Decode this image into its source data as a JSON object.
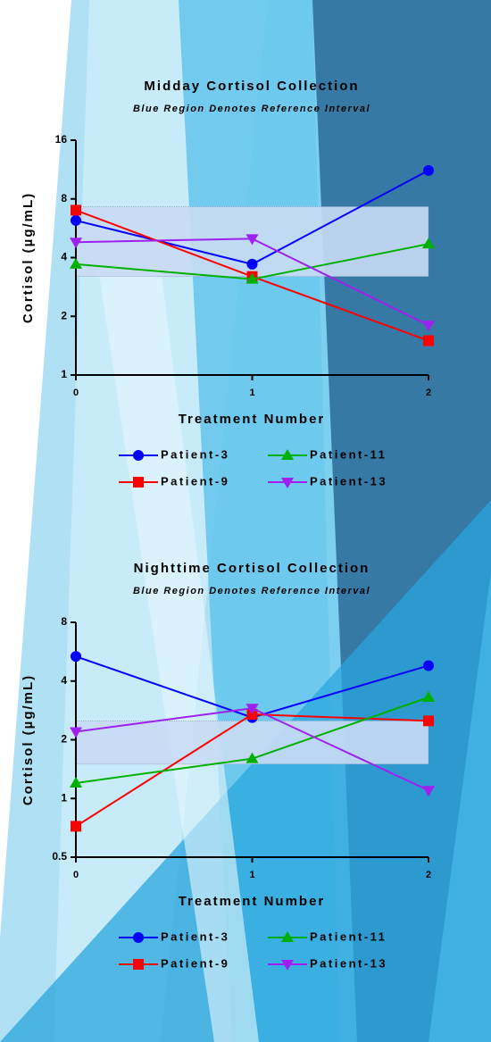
{
  "chart_data": [
    {
      "type": "line",
      "title": "Midday Cortisol Collection",
      "subtitle": "Blue Region Denotes Reference Interval",
      "x_label": "Treatment Number",
      "y_label": "Cortisol (µg/mL)",
      "x": [
        0,
        1,
        2
      ],
      "xlim": [
        0,
        2
      ],
      "xticks": [
        0,
        1,
        2
      ],
      "ylim": [
        1,
        16
      ],
      "yticks": [
        1,
        2,
        4,
        8,
        16
      ],
      "log_scale": true,
      "reference_interval": [
        3.2,
        7.3
      ],
      "reference_color": "#c9dcf5",
      "series": [
        {
          "name": "Patient-3",
          "color": "#0000ff",
          "marker": "circle",
          "values": [
            6.2,
            3.7,
            11.2
          ]
        },
        {
          "name": "Patient-9",
          "color": "#ff0000",
          "marker": "square",
          "values": [
            7.0,
            3.2,
            1.5
          ]
        },
        {
          "name": "Patient-11",
          "color": "#00b000",
          "marker": "triangle",
          "values": [
            3.7,
            3.1,
            4.7
          ]
        },
        {
          "name": "Patient-13",
          "color": "#a020f0",
          "marker": "triangle-down",
          "values": [
            4.8,
            5.0,
            1.8
          ]
        }
      ]
    },
    {
      "type": "line",
      "title": "Nighttime Cortisol Collection",
      "subtitle": "Blue Region Denotes Reference Interval",
      "x_label": "Treatment Number",
      "y_label": "Cortisol (µg/mL)",
      "x": [
        0,
        1,
        2
      ],
      "xlim": [
        0,
        2
      ],
      "xticks": [
        0,
        1,
        2
      ],
      "ylim": [
        0.5,
        8
      ],
      "yticks": [
        0.5,
        1,
        2,
        4,
        8
      ],
      "log_scale": true,
      "reference_interval": [
        1.5,
        2.5
      ],
      "reference_color": "#c9dcf5",
      "series": [
        {
          "name": "Patient-3",
          "color": "#0000ff",
          "marker": "circle",
          "values": [
            5.35,
            2.6,
            4.8
          ]
        },
        {
          "name": "Patient-9",
          "color": "#ff0000",
          "marker": "square",
          "values": [
            0.72,
            2.7,
            2.5
          ]
        },
        {
          "name": "Patient-11",
          "color": "#00b000",
          "marker": "triangle",
          "values": [
            1.2,
            1.6,
            3.3
          ]
        },
        {
          "name": "Patient-13",
          "color": "#a020f0",
          "marker": "triangle-down",
          "values": [
            2.2,
            2.9,
            1.1
          ]
        }
      ]
    }
  ]
}
